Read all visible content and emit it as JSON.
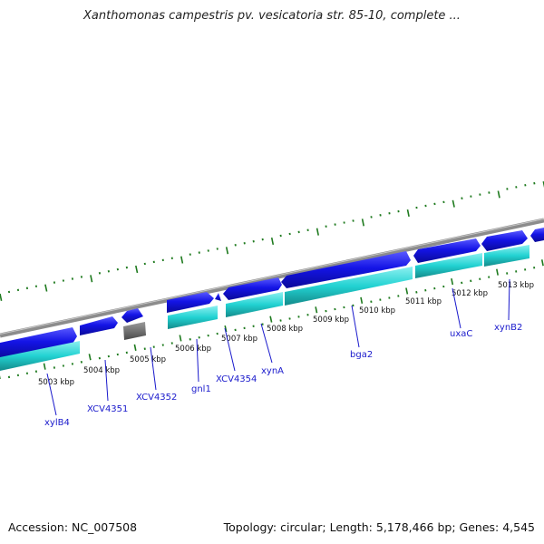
{
  "title": "Xanthomonas campestris pv. vesicatoria str. 85-10, complete ...",
  "accession_label": "Accession: NC_007508",
  "topology_label": "Topology: circular; Length: 5,178,466 bp; Genes: 4,545",
  "colors": {
    "backbone": "#8c8c8c",
    "forward_gene": "#1414e6",
    "reverse_gene": "#22d2d2",
    "tick": "#1e7a1e",
    "pseudo_gene": "#6e6e6e",
    "label": "#1a1acc"
  },
  "kbp_labels": [
    "5003 kbp",
    "5004 kbp",
    "5005 kbp",
    "5006 kbp",
    "5007 kbp",
    "5008 kbp",
    "5009 kbp",
    "5010 kbp",
    "5011 kbp",
    "5012 kbp",
    "5013 kbp"
  ],
  "gene_labels": [
    "xylB4",
    "XCV4351",
    "XCV4352",
    "gnl1",
    "XCV4354",
    "xynA",
    "bga2",
    "uxaC",
    "xynB2"
  ]
}
